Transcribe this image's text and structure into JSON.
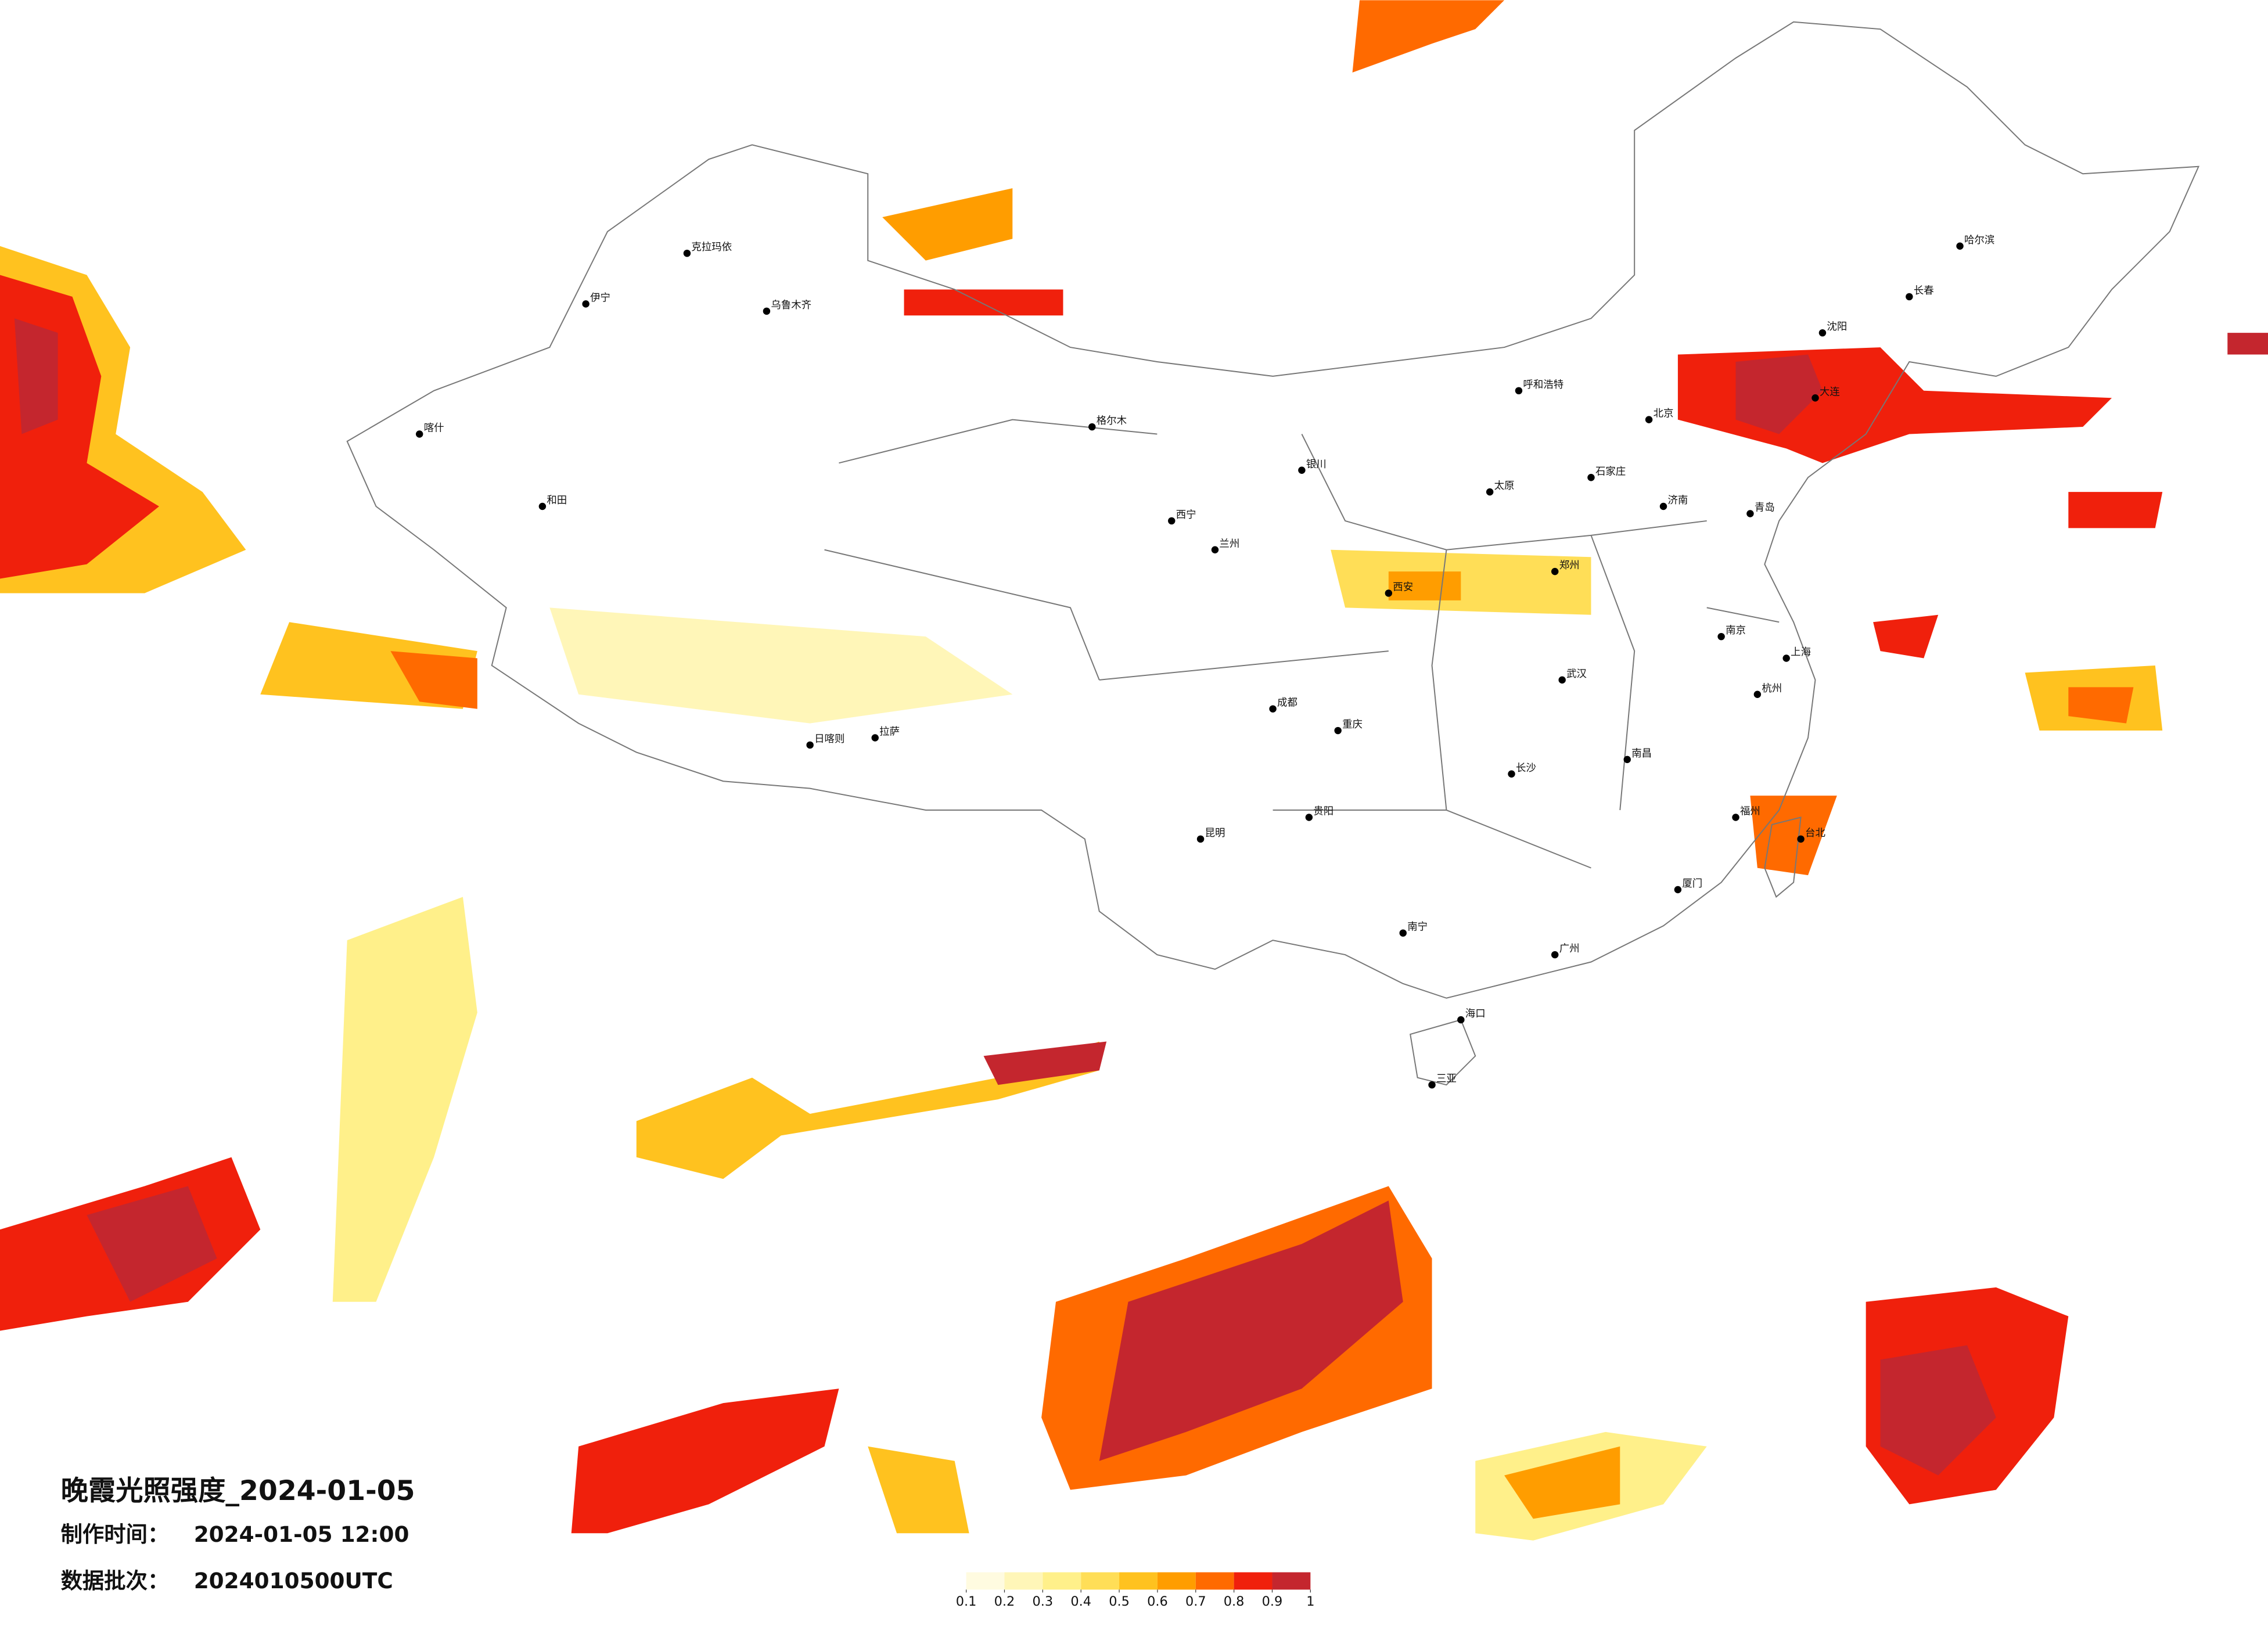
{
  "title": "晚霞光照强度_2024-01-05",
  "made_time_label": "制作时间：",
  "made_time": "2024-01-05 12:00",
  "batch_label": "数据批次：",
  "batch": "2024010500UTC",
  "colorbar": {
    "ticks": [
      0.1,
      0.2,
      0.3,
      0.4,
      0.5,
      0.6,
      0.7,
      0.8,
      0.9,
      1
    ],
    "colors": [
      "#fffbe0",
      "#fff6b8",
      "#fff08a",
      "#ffde57",
      "#ffc21f",
      "#ff9d00",
      "#ff6a00",
      "#f0200c",
      "#c4262e"
    ]
  },
  "cities": [
    "北京",
    "上海",
    "广州",
    "乌鲁木齐",
    "拉萨",
    "成都",
    "哈尔滨",
    "西安",
    "武汉",
    "昆明",
    "呼和浩特",
    "兰州",
    "西宁",
    "南宁",
    "海口",
    "台北",
    "长沙",
    "郑州",
    "济南",
    "沈阳",
    "长春",
    "南京",
    "杭州",
    "福州",
    "南昌",
    "贵阳",
    "重庆",
    "石家庄",
    "太原",
    "银川",
    "喀什",
    "和田",
    "伊宁",
    "克拉玛依",
    "格尔木",
    "日喀则",
    "大连",
    "青岛",
    "厦门",
    "三亚"
  ]
}
